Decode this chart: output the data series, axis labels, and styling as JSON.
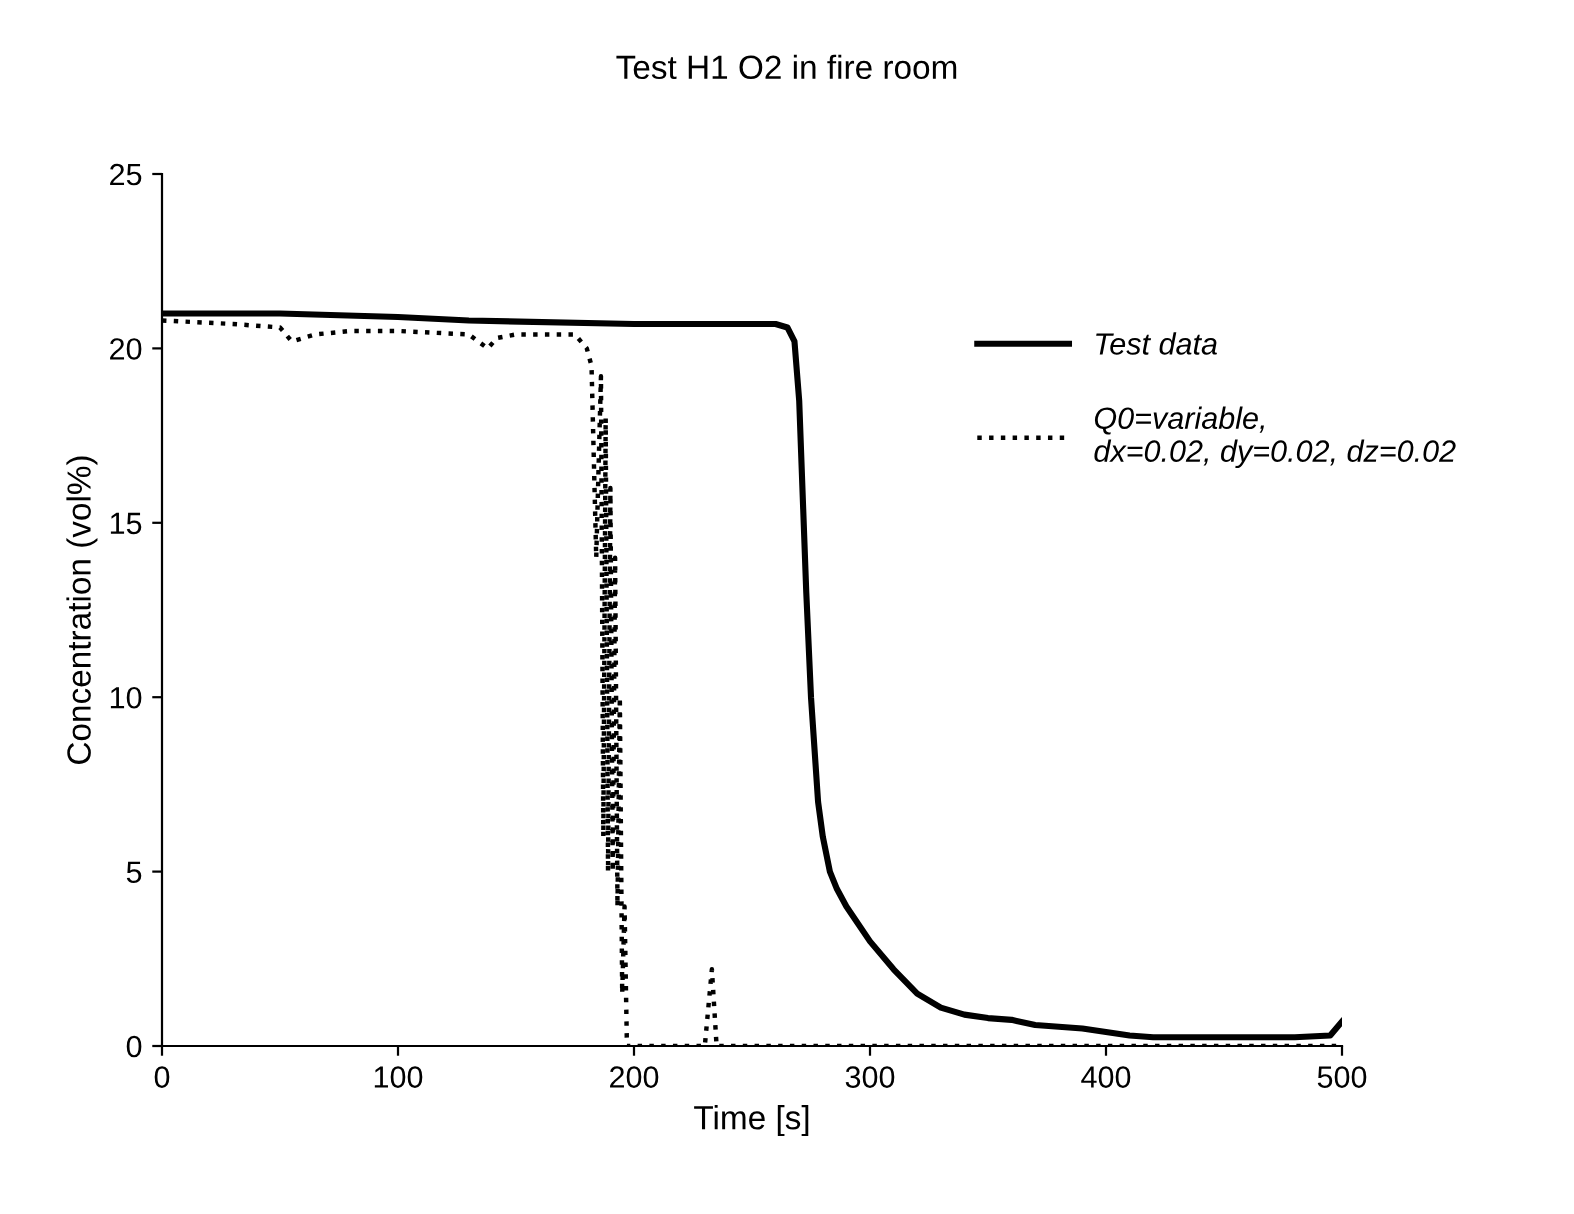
{
  "chart_data": {
    "type": "line",
    "title": "Test H1 O2 in fire room",
    "xlabel": "Time [s]",
    "ylabel": "Concentration (vol%)",
    "xlim": [
      0,
      500
    ],
    "xticks": [
      0,
      100,
      200,
      300,
      400,
      500
    ],
    "ylim": [
      0,
      25
    ],
    "yticks": [
      0,
      5,
      10,
      15,
      20,
      25
    ],
    "grid": false,
    "legend": "top right",
    "marker": "none",
    "series": [
      {
        "name": "Test data",
        "color": "#000000",
        "line_style": "solid",
        "x": [
          0,
          50,
          100,
          130,
          200,
          250,
          260,
          265,
          268,
          270,
          273,
          275,
          278,
          280,
          283,
          286,
          290,
          300,
          310,
          320,
          330,
          340,
          350,
          360,
          370,
          380,
          390,
          400,
          410,
          420,
          450,
          480,
          495,
          500
        ],
        "values": [
          21.0,
          21.0,
          20.9,
          20.8,
          20.7,
          20.7,
          20.7,
          20.6,
          20.2,
          18.5,
          13,
          10,
          7,
          6,
          5,
          4.5,
          4,
          3,
          2.2,
          1.5,
          1.1,
          0.9,
          0.8,
          0.75,
          0.6,
          0.55,
          0.5,
          0.4,
          0.3,
          0.25,
          0.25,
          0.25,
          0.3,
          0.7
        ]
      },
      {
        "name": "Q0=variable,\ndx=0.02, dy=0.02, dz=0.02",
        "color": "#000000",
        "line_style": "dotted",
        "x": [
          0,
          30,
          50,
          55,
          65,
          80,
          100,
          130,
          138,
          142,
          150,
          175,
          180,
          182,
          184,
          186,
          187,
          188,
          189,
          190,
          191,
          192,
          193,
          194,
          195,
          196,
          197,
          230,
          233,
          235,
          500
        ],
        "values": [
          20.8,
          20.7,
          20.6,
          20.2,
          20.4,
          20.5,
          20.5,
          20.4,
          20.0,
          20.3,
          20.4,
          20.4,
          20.0,
          19.5,
          14,
          19.2,
          6,
          18,
          5,
          16,
          5,
          14,
          4,
          10,
          1.5,
          4,
          0,
          0,
          2.2,
          0,
          0
        ]
      }
    ]
  }
}
